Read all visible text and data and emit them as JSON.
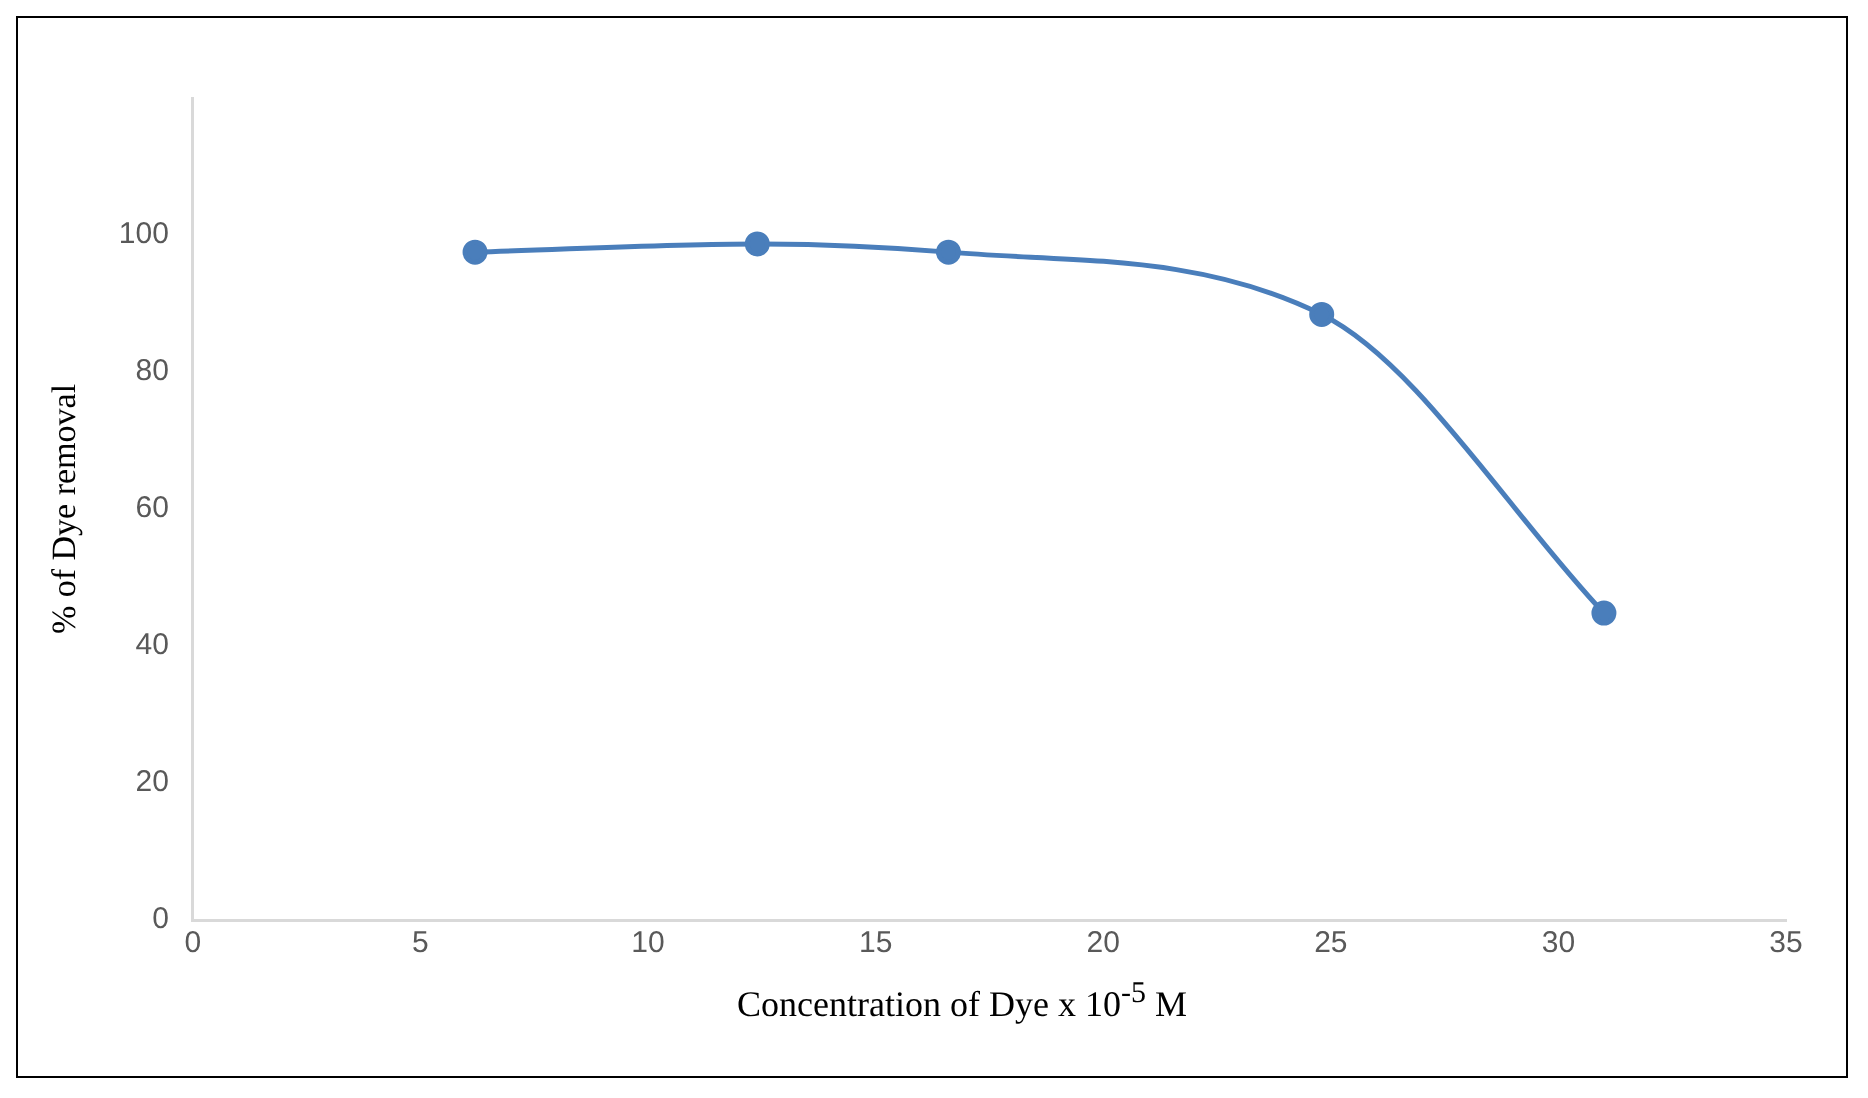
{
  "chart_data": {
    "type": "line",
    "xlabel": "Concentration of Dye x 10$^{-5}$ M",
    "ylabel": "% of Dye removal",
    "x": [
      6.2,
      12.4,
      16.6,
      24.8,
      31
    ],
    "series": [
      {
        "color": "#4a7ebb",
        "values": [
          97.5,
          98.7,
          97.5,
          88.4,
          44.8
        ]
      }
    ],
    "xlim": [
      0,
      35
    ],
    "xticks": [
      0,
      5,
      10,
      15,
      20,
      25,
      30,
      35
    ],
    "ylim": [
      0,
      120
    ],
    "yticks": [
      0,
      20,
      40,
      60,
      80,
      100
    ],
    "grid": false,
    "legend": false,
    "marker": "circle",
    "line_style": "solid"
  }
}
